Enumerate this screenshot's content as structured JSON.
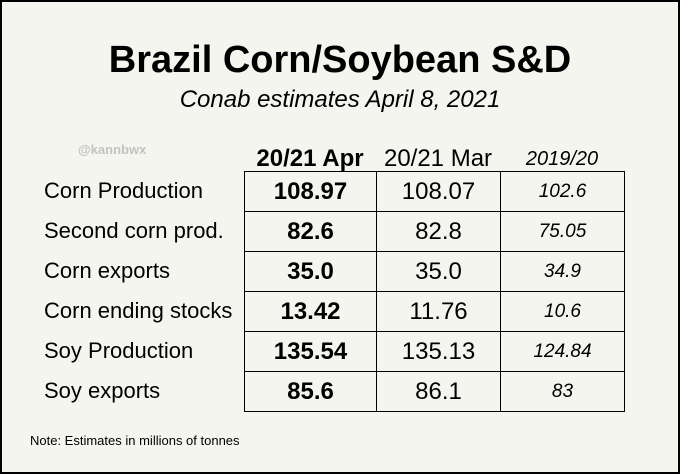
{
  "chart_data": {
    "type": "table",
    "title": "Brazil Corn/Soybean S&D",
    "subtitle": "Conab estimates April 8, 2021",
    "watermark": "@kannbwx",
    "columns": [
      "20/21 Apr",
      "20/21 Mar",
      "2019/20"
    ],
    "rows": [
      {
        "label": "Corn Production",
        "values": [
          "108.97",
          "108.07",
          "102.6"
        ]
      },
      {
        "label": "Second corn prod.",
        "values": [
          "82.6",
          "82.8",
          "75.05"
        ]
      },
      {
        "label": "Corn exports",
        "values": [
          "35.0",
          "35.0",
          "34.9"
        ]
      },
      {
        "label": "Corn ending stocks",
        "values": [
          "13.42",
          "11.76",
          "10.6"
        ]
      },
      {
        "label": "Soy Production",
        "values": [
          "135.54",
          "135.13",
          "124.84"
        ]
      },
      {
        "label": "Soy exports",
        "values": [
          "85.6",
          "86.1",
          "83"
        ]
      }
    ],
    "note": "Note: Estimates in millions of tonnes"
  }
}
